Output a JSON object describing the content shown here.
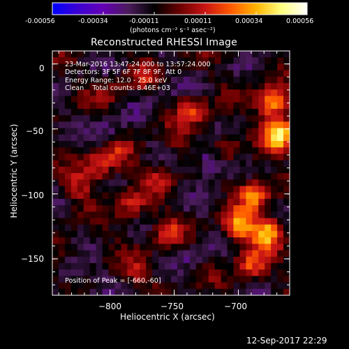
{
  "colorbar": {
    "ticks": [
      "-0.00056",
      "-0.00034",
      "-0.00011",
      "0.00011",
      "0.00034",
      "0.00056"
    ],
    "unit_label": "(photons cm⁻² s⁻¹ asec⁻²)",
    "colors": [
      "#0000ff",
      "#3c00d2",
      "#6400b4",
      "#4a1b5a",
      "#000000",
      "#6a0000",
      "#c81414",
      "#ff5a00",
      "#ffb400",
      "#ffff80",
      "#ffffff"
    ]
  },
  "info": {
    "line1": "23-Mar-2016 13:47:24.000 to 13:57:24.000",
    "line2": "Detectors: 3F 5F 6F 7F 8F 9F, Att 0",
    "line3": "Energy Range: 12.0 - 25.0 keV",
    "line4": "Clean    Total counts: 8.46E+03",
    "peak": "Position of Peak = [-660,-60]"
  },
  "footer": {
    "timestamp": "12-Sep-2017 22:29"
  },
  "chart_data": {
    "type": "heatmap",
    "title": "Reconstructed RHESSI Image",
    "xlabel": "Heliocentric X (arcsec)",
    "ylabel": "Heliocentric Y (arcsec)",
    "xlim": [
      -845,
      -660
    ],
    "ylim": [
      -178,
      10
    ],
    "xticks": [
      -800,
      -750,
      -700
    ],
    "xtick_labels": [
      "−800",
      "−750",
      "−700"
    ],
    "yticks": [
      0,
      -50,
      -100,
      -150
    ],
    "ytick_labels": [
      "0",
      "−50",
      "−100",
      "−150"
    ],
    "value_range": [
      -0.00056,
      0.00056
    ],
    "peak": [
      -660,
      -60
    ],
    "hotspots": [
      {
        "x": -668,
        "y": -55,
        "v": 0.00056
      },
      {
        "x": -672,
        "y": -30,
        "v": 0.00048
      },
      {
        "x": -688,
        "y": -100,
        "v": 0.0004
      },
      {
        "x": -678,
        "y": -130,
        "v": 0.0005
      },
      {
        "x": -700,
        "y": -125,
        "v": 0.00042
      },
      {
        "x": -690,
        "y": -155,
        "v": 0.0003
      },
      {
        "x": -735,
        "y": -35,
        "v": 0.00026
      },
      {
        "x": -712,
        "y": -65,
        "v": 0.00022
      },
      {
        "x": -810,
        "y": -80,
        "v": 0.00026
      },
      {
        "x": -795,
        "y": -70,
        "v": 0.00022
      },
      {
        "x": -783,
        "y": -110,
        "v": 0.00024
      },
      {
        "x": -760,
        "y": -90,
        "v": 0.00018
      },
      {
        "x": -755,
        "y": -130,
        "v": 0.00022
      },
      {
        "x": -825,
        "y": -95,
        "v": 0.00018
      },
      {
        "x": -777,
        "y": -160,
        "v": 0.00018
      },
      {
        "x": -735,
        "y": -155,
        "v": 0.00014
      },
      {
        "x": -772,
        "y": -8,
        "v": 0.00016
      },
      {
        "x": -800,
        "y": -20,
        "v": 0.00012
      },
      {
        "x": -748,
        "y": -60,
        "v": 0.00014
      },
      {
        "x": -832,
        "y": -145,
        "v": 0.0001
      }
    ],
    "coldspots": [
      {
        "x": -720,
        "y": -75,
        "v": -0.0003
      },
      {
        "x": -735,
        "y": -150,
        "v": -0.00024
      },
      {
        "x": -800,
        "y": -55,
        "v": -0.00016
      },
      {
        "x": -830,
        "y": -160,
        "v": -0.00018
      },
      {
        "x": -760,
        "y": -20,
        "v": -0.0001
      }
    ]
  }
}
